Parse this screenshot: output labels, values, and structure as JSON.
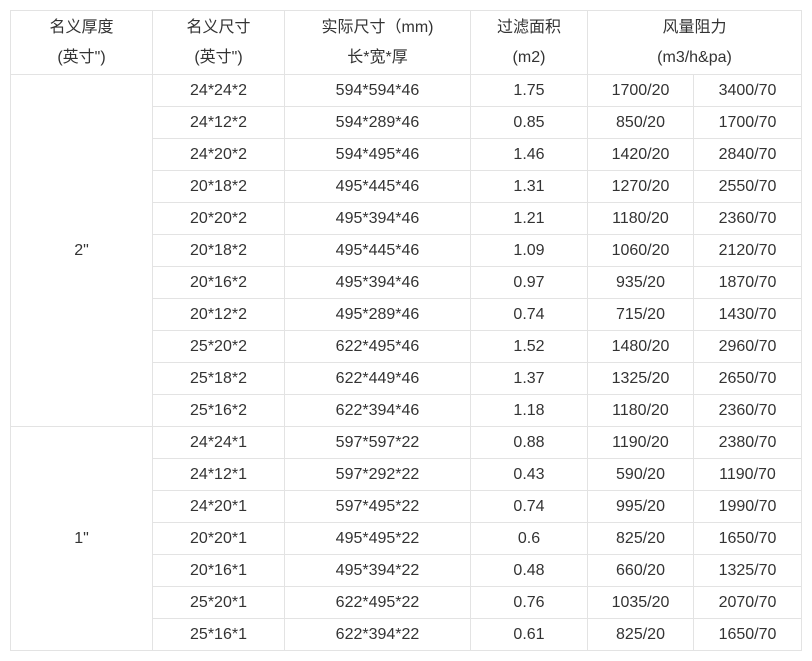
{
  "headers": [
    {
      "line1": "名义厚度",
      "line2": "(英寸\")"
    },
    {
      "line1": "名义尺寸",
      "line2": "(英寸\")"
    },
    {
      "line1": "实际尺寸（mm)",
      "line2": "长*宽*厚"
    },
    {
      "line1": "过滤面积",
      "line2": "(m2)"
    },
    {
      "line1": "风量阻力",
      "line2": "(m3/h&pa)"
    }
  ],
  "groups": [
    {
      "thickness": "2\"",
      "rows": [
        [
          "24*24*2",
          "594*594*46",
          "1.75",
          "1700/20",
          "3400/70"
        ],
        [
          "24*12*2",
          "594*289*46",
          "0.85",
          "850/20",
          "1700/70"
        ],
        [
          "24*20*2",
          "594*495*46",
          "1.46",
          "1420/20",
          "2840/70"
        ],
        [
          "20*18*2",
          "495*445*46",
          "1.31",
          "1270/20",
          "2550/70"
        ],
        [
          "20*20*2",
          "495*394*46",
          "1.21",
          "1180/20",
          "2360/70"
        ],
        [
          "20*18*2",
          "495*445*46",
          "1.09",
          "1060/20",
          "2120/70"
        ],
        [
          "20*16*2",
          "495*394*46",
          "0.97",
          "935/20",
          "1870/70"
        ],
        [
          "20*12*2",
          "495*289*46",
          "0.74",
          "715/20",
          "1430/70"
        ],
        [
          "25*20*2",
          "622*495*46",
          "1.52",
          "1480/20",
          "2960/70"
        ],
        [
          "25*18*2",
          "622*449*46",
          "1.37",
          "1325/20",
          "2650/70"
        ],
        [
          "25*16*2",
          "622*394*46",
          "1.18",
          "1180/20",
          "2360/70"
        ]
      ]
    },
    {
      "thickness": "1\"",
      "rows": [
        [
          "24*24*1",
          "597*597*22",
          "0.88",
          "1190/20",
          "2380/70"
        ],
        [
          "24*12*1",
          "597*292*22",
          "0.43",
          "590/20",
          "1190/70"
        ],
        [
          "24*20*1",
          "597*495*22",
          "0.74",
          "995/20",
          "1990/70"
        ],
        [
          "20*20*1",
          "495*495*22",
          "0.6",
          "825/20",
          "1650/70"
        ],
        [
          "20*16*1",
          "495*394*22",
          "0.48",
          "660/20",
          "1325/70"
        ],
        [
          "25*20*1",
          "622*495*22",
          "0.76",
          "1035/20",
          "2070/70"
        ],
        [
          "25*16*1",
          "622*394*22",
          "0.61",
          "825/20",
          "1650/70"
        ]
      ]
    }
  ]
}
